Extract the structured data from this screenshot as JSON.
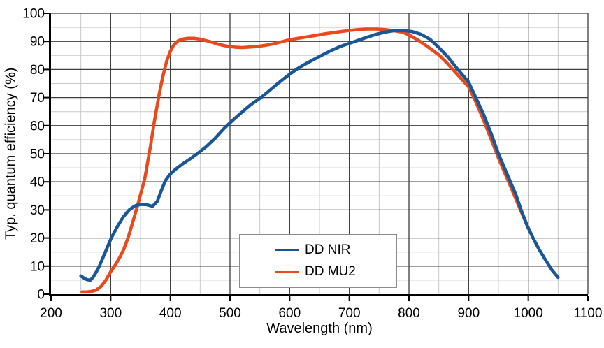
{
  "chart_data": {
    "type": "line",
    "title": "",
    "xlabel": "Wavelength (nm)",
    "ylabel": "Typ. quantum efficiency (%)",
    "xlim": [
      200,
      1100
    ],
    "ylim": [
      0,
      100
    ],
    "x_ticks": [
      200,
      300,
      400,
      500,
      600,
      700,
      800,
      900,
      1000,
      1100
    ],
    "y_ticks": [
      0,
      10,
      20,
      30,
      40,
      50,
      60,
      70,
      80,
      90,
      100
    ],
    "x_minor_step": 50,
    "y_minor_step": 5,
    "grid": "major+minor",
    "legend_position": "inside-bottom-center",
    "colors": {
      "grid_major": "#3d3d3d",
      "grid_minor": "#c8c8c8",
      "axis": "#000000",
      "background": "#ffffff",
      "legend_border": "#8c8c8c",
      "text": "#000000"
    },
    "series": [
      {
        "name": "DD NIR",
        "color": "#1a5796",
        "points": [
          [
            250,
            6.5
          ],
          [
            255,
            5.8
          ],
          [
            260,
            5.2
          ],
          [
            266,
            5.0
          ],
          [
            271,
            6.2
          ],
          [
            276,
            8.0
          ],
          [
            281,
            10.0
          ],
          [
            286,
            12.5
          ],
          [
            291,
            15.0
          ],
          [
            296,
            17.5
          ],
          [
            301,
            20.0
          ],
          [
            311,
            24.0
          ],
          [
            321,
            27.5
          ],
          [
            331,
            30.0
          ],
          [
            340,
            31.4
          ],
          [
            350,
            32.0
          ],
          [
            360,
            31.9
          ],
          [
            370,
            31.3
          ],
          [
            378,
            33.0
          ],
          [
            385,
            37.0
          ],
          [
            392,
            40.5
          ],
          [
            400,
            42.8
          ],
          [
            410,
            44.7
          ],
          [
            420,
            46.3
          ],
          [
            432,
            48.0
          ],
          [
            445,
            50.0
          ],
          [
            460,
            52.5
          ],
          [
            475,
            55.5
          ],
          [
            490,
            59.0
          ],
          [
            505,
            62.0
          ],
          [
            520,
            64.8
          ],
          [
            535,
            67.5
          ],
          [
            552,
            70.0
          ],
          [
            565,
            72.3
          ],
          [
            580,
            75.0
          ],
          [
            595,
            77.5
          ],
          [
            611,
            80.0
          ],
          [
            625,
            81.8
          ],
          [
            640,
            83.5
          ],
          [
            655,
            85.2
          ],
          [
            670,
            86.8
          ],
          [
            685,
            88.2
          ],
          [
            700,
            89.3
          ],
          [
            715,
            90.4
          ],
          [
            730,
            91.5
          ],
          [
            745,
            92.5
          ],
          [
            760,
            93.3
          ],
          [
            775,
            93.8
          ],
          [
            790,
            93.9
          ],
          [
            805,
            93.5
          ],
          [
            820,
            92.5
          ],
          [
            835,
            90.8
          ],
          [
            850,
            87.8
          ],
          [
            865,
            84.5
          ],
          [
            880,
            80.5
          ],
          [
            900,
            75.5
          ],
          [
            912,
            70.0
          ],
          [
            925,
            64.0
          ],
          [
            938,
            57.0
          ],
          [
            950,
            50.0
          ],
          [
            960,
            45.0
          ],
          [
            970,
            40.0
          ],
          [
            980,
            35.0
          ],
          [
            988,
            30.0
          ],
          [
            998,
            24.5
          ],
          [
            1008,
            20.0
          ],
          [
            1018,
            16.0
          ],
          [
            1030,
            11.8
          ],
          [
            1040,
            8.5
          ],
          [
            1050,
            6.0
          ]
        ]
      },
      {
        "name": "DD MU2",
        "color": "#e94a1d",
        "points": [
          [
            252,
            0.8
          ],
          [
            260,
            0.8
          ],
          [
            268,
            1.0
          ],
          [
            276,
            1.5
          ],
          [
            284,
            2.8
          ],
          [
            292,
            5.0
          ],
          [
            300,
            8.0
          ],
          [
            308,
            10.5
          ],
          [
            315,
            13.0
          ],
          [
            322,
            16.0
          ],
          [
            329,
            20.0
          ],
          [
            336,
            25.0
          ],
          [
            343,
            30.0
          ],
          [
            350,
            35.5
          ],
          [
            357,
            41.0
          ],
          [
            362,
            47.0
          ],
          [
            367,
            53.0
          ],
          [
            372,
            60.0
          ],
          [
            377,
            66.0
          ],
          [
            382,
            72.0
          ],
          [
            388,
            78.0
          ],
          [
            394,
            83.0
          ],
          [
            400,
            86.5
          ],
          [
            406,
            88.8
          ],
          [
            413,
            90.2
          ],
          [
            420,
            90.8
          ],
          [
            430,
            91.1
          ],
          [
            440,
            91.1
          ],
          [
            450,
            90.8
          ],
          [
            465,
            90.0
          ],
          [
            480,
            89.0
          ],
          [
            495,
            88.3
          ],
          [
            510,
            87.9
          ],
          [
            520,
            87.8
          ],
          [
            535,
            88.0
          ],
          [
            550,
            88.3
          ],
          [
            565,
            88.8
          ],
          [
            580,
            89.5
          ],
          [
            600,
            90.6
          ],
          [
            620,
            91.3
          ],
          [
            640,
            92.0
          ],
          [
            660,
            92.7
          ],
          [
            680,
            93.3
          ],
          [
            700,
            93.9
          ],
          [
            715,
            94.2
          ],
          [
            730,
            94.4
          ],
          [
            745,
            94.4
          ],
          [
            760,
            94.2
          ],
          [
            775,
            93.8
          ],
          [
            790,
            93.2
          ],
          [
            800,
            92.3
          ],
          [
            815,
            90.5
          ],
          [
            830,
            88.3
          ],
          [
            850,
            85.2
          ],
          [
            865,
            82.0
          ],
          [
            880,
            78.5
          ],
          [
            900,
            73.8
          ],
          [
            912,
            68.5
          ],
          [
            925,
            62.0
          ],
          [
            938,
            55.0
          ],
          [
            950,
            48.5
          ],
          [
            960,
            43.5
          ],
          [
            970,
            38.5
          ],
          [
            980,
            33.5
          ],
          [
            990,
            28.5
          ],
          [
            1000,
            23.5
          ]
        ]
      }
    ]
  }
}
